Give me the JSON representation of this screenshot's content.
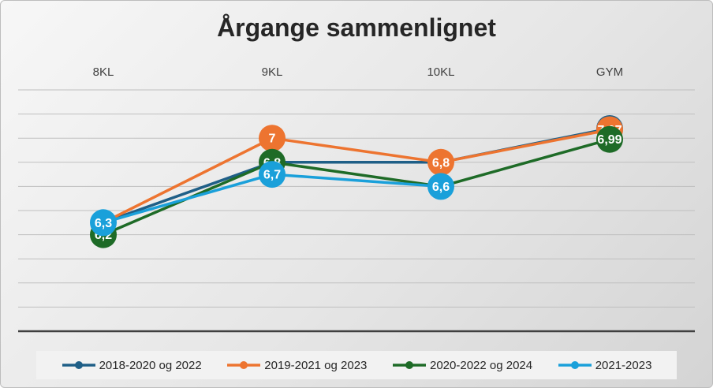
{
  "chart_data": {
    "type": "line",
    "title": "Årgange sammenlignet",
    "xlabel": "",
    "ylabel": "",
    "categories": [
      "8KL",
      "9KL",
      "10KL",
      "GYM"
    ],
    "ylim": [
      5.4,
      7.4
    ],
    "grid": true,
    "legend_position": "bottom",
    "series": [
      {
        "name": "2018-2020 og 2022",
        "color": "#1f5f87",
        "values": [
          6.3,
          6.8,
          6.8,
          7.08
        ],
        "labels": [
          "",
          "",
          "",
          "7,08"
        ]
      },
      {
        "name": "2019-2021 og 2023",
        "color": "#ed7430",
        "values": [
          6.3,
          7.0,
          6.8,
          7.07
        ],
        "labels": [
          "",
          "7",
          "6,8",
          "7,07"
        ]
      },
      {
        "name": "2020-2022 og 2024",
        "color": "#1e6b27",
        "values": [
          6.2,
          6.8,
          6.6,
          6.99
        ],
        "labels": [
          "6,2",
          "6,8",
          "",
          "6,99"
        ]
      },
      {
        "name": "2021-2023",
        "color": "#1aa0da",
        "values": [
          6.3,
          6.7,
          6.6,
          null
        ],
        "labels": [
          "6,3",
          "6,7",
          "6,6",
          ""
        ]
      }
    ]
  }
}
